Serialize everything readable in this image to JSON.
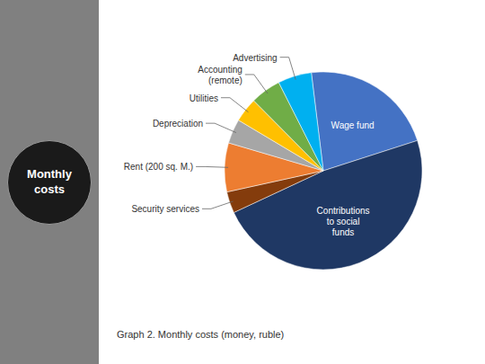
{
  "chart_data": {
    "type": "pie",
    "title": "Graph 2. Monthly costs (money, ruble)",
    "subtitle": "Monthly\ncosts",
    "categories": [
      "Wage fund",
      "Contributions\nto social\nfunds",
      "Security services",
      "Rent (200 sq. M.)",
      "Depreciation",
      "Utilities",
      "Accounting\n(remote)",
      "Advertising"
    ],
    "values": [
      22,
      48,
      3.5,
      8,
      4,
      4,
      5,
      5.5
    ],
    "colors": [
      "#4472C4",
      "#1F3864",
      "#843C0C",
      "#ED7D31",
      "#A6A6A6",
      "#FFC000",
      "#70AD47",
      "#00B0F0"
    ]
  }
}
